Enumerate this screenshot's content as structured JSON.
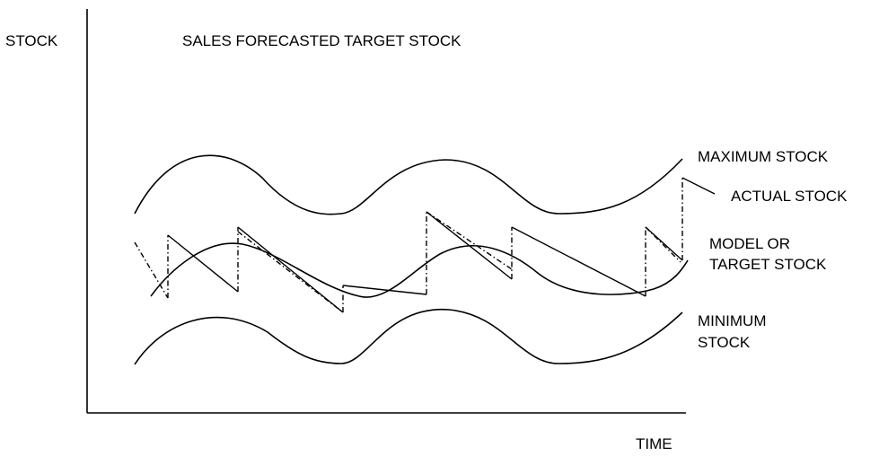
{
  "labels": {
    "y_axis": "STOCK",
    "x_axis": "TIME",
    "title": "SALES FORECASTED TARGET STOCK",
    "maximum": "MAXIMUM STOCK",
    "actual": "ACTUAL STOCK",
    "model_line1": "MODEL OR",
    "model_line2": "TARGET STOCK",
    "minimum_line1": "MINIMUM",
    "minimum_line2": "STOCK"
  },
  "colors": {
    "ink": "#000000",
    "background": "#ffffff"
  }
}
